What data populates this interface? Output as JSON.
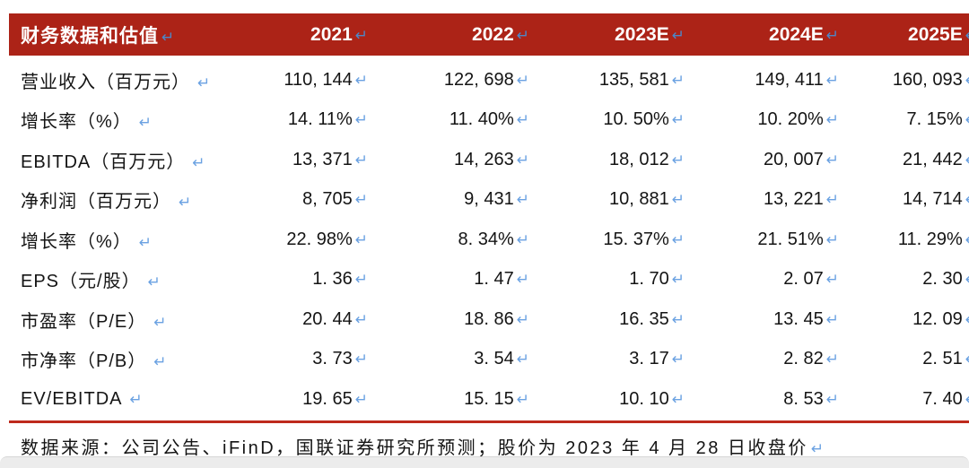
{
  "colors": {
    "header_bg": "#AC2317",
    "header_text": "#FFFFFF",
    "body_text": "#141414",
    "divider_red": "#BE2A1C",
    "mark_blue": "#6BA2E2",
    "mark_blue_header": "#4D86C6",
    "strip_bg": "#ECECEC",
    "strip_border": "#D6D6D6"
  },
  "glyphs": {
    "return_mark": "↵"
  },
  "table": {
    "header": {
      "label": "财务数据和估值",
      "years": [
        "2021",
        "2022",
        "2023E",
        "2024E",
        "2025E"
      ]
    },
    "rows": [
      {
        "label": "营业收入（百万元）",
        "values": [
          "110, 144",
          "122, 698",
          "135, 581",
          "149, 411",
          "160, 093"
        ]
      },
      {
        "label": "增长率（%）",
        "values": [
          "14. 11%",
          "11. 40%",
          "10. 50%",
          "10. 20%",
          "7. 15%"
        ]
      },
      {
        "label": "EBITDA（百万元）",
        "values": [
          "13, 371",
          "14, 263",
          "18, 012",
          "20, 007",
          "21, 442"
        ]
      },
      {
        "label": "净利润（百万元）",
        "values": [
          "8, 705",
          "9, 431",
          "10, 881",
          "13, 221",
          "14, 714"
        ]
      },
      {
        "label": "增长率（%）",
        "values": [
          "22. 98%",
          "8. 34%",
          "15. 37%",
          "21. 51%",
          "11. 29%"
        ]
      },
      {
        "label": "EPS（元/股）",
        "values": [
          "1. 36",
          "1. 47",
          "1. 70",
          "2. 07",
          "2. 30"
        ]
      },
      {
        "label": "市盈率（P/E）",
        "values": [
          "20. 44",
          "18. 86",
          "16. 35",
          "13. 45",
          "12. 09"
        ]
      },
      {
        "label": "市净率（P/B）",
        "values": [
          "3. 73",
          "3. 54",
          "3. 17",
          "2. 82",
          "2. 51"
        ]
      },
      {
        "label": "EV/EBITDA",
        "values": [
          "19. 65",
          "15. 15",
          "10. 10",
          "8. 53",
          "7. 40"
        ]
      }
    ]
  },
  "footer": {
    "source_note": "数据来源：公司公告、iFinD，国联证券研究所预测；股价为 2023 年 4 月 28 日收盘价"
  }
}
